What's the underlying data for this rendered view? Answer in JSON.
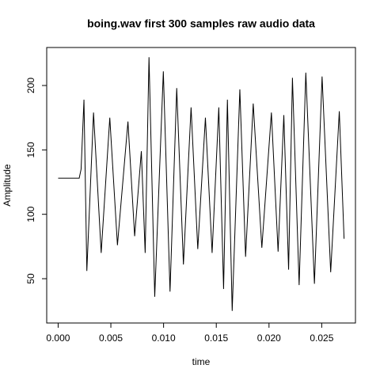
{
  "chart_data": {
    "type": "line",
    "title": "boing.wav first 300 samples raw audio data",
    "xlabel": "time",
    "ylabel": "Amplitude",
    "color": "#000000",
    "x": [
      0,
      0.001995,
      0.002177,
      0.002449,
      0.002721,
      0.003356,
      0.004082,
      0.004898,
      0.005624,
      0.006621,
      0.007256,
      0.007891,
      0.008254,
      0.008617,
      0.009161,
      0.009977,
      0.010612,
      0.011247,
      0.011882,
      0.012608,
      0.013243,
      0.013968,
      0.014603,
      0.015238,
      0.015692,
      0.016054,
      0.016508,
      0.017234,
      0.017778,
      0.018503,
      0.01932,
      0.020227,
      0.020862,
      0.021406,
      0.021859,
      0.022222,
      0.022857,
      0.023492,
      0.024308,
      0.025034,
      0.02585,
      0.026667,
      0.02712
    ],
    "values": [
      128,
      128,
      135,
      189,
      56,
      179,
      70,
      175,
      76,
      172,
      83,
      149,
      70,
      222,
      36,
      211,
      40,
      198,
      61,
      183,
      73,
      175,
      70,
      183,
      42,
      189,
      25,
      197,
      67,
      186,
      74,
      179,
      71,
      177,
      57,
      206,
      45,
      210,
      46,
      207,
      55,
      180,
      81
    ],
    "xlim": [
      -0.001085,
      0.0282
    ],
    "ylim": [
      15.6,
      229.5
    ],
    "xticks": [
      {
        "value": 0,
        "label": "0.000"
      },
      {
        "value": 0.005,
        "label": "0.005"
      },
      {
        "value": 0.01,
        "label": "0.010"
      },
      {
        "value": 0.015,
        "label": "0.015"
      },
      {
        "value": 0.02,
        "label": "0.020"
      },
      {
        "value": 0.025,
        "label": "0.025"
      }
    ],
    "yticks": [
      50,
      100,
      150,
      200
    ]
  }
}
